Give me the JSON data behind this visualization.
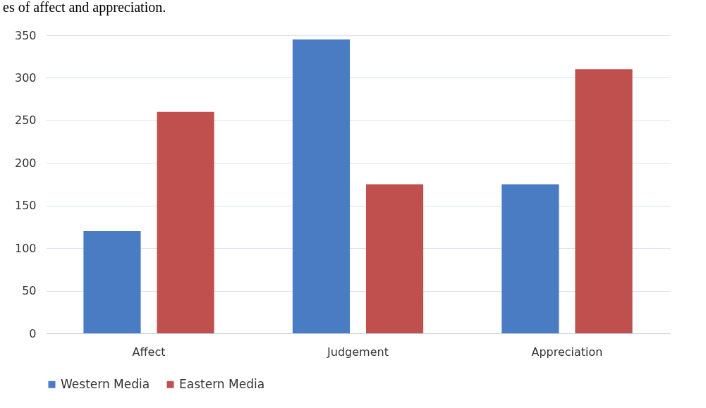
{
  "chart_data": {
    "type": "bar",
    "categories": [
      "Affect",
      "Judgement",
      "Appreciation"
    ],
    "series": [
      {
        "name": "Western Media",
        "color": "#4a7cc4",
        "values": [
          120,
          345,
          175
        ]
      },
      {
        "name": "Eastern Media",
        "color": "#c0504d",
        "values": [
          260,
          175,
          310
        ]
      }
    ],
    "ylim": [
      0,
      350
    ],
    "yticks": [
      0,
      50,
      100,
      150,
      200,
      250,
      300,
      350
    ],
    "grid": "y",
    "legend": "bottom",
    "annotations": [
      "es of affect and appreciation."
    ]
  }
}
